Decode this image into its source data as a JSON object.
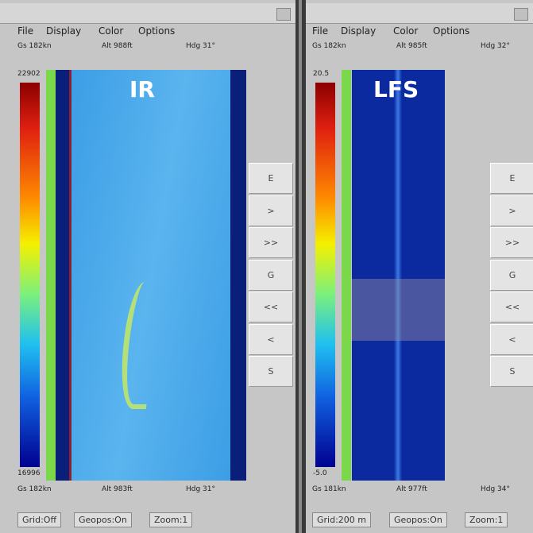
{
  "left_panel": {
    "menu": [
      "File",
      "Display",
      "Color",
      "Options"
    ],
    "status_top": [
      "Gs 182kn",
      "Alt 988ft",
      "Hdg 31°"
    ],
    "colorbar": {
      "max": "22902",
      "min": "16996"
    },
    "label": "IR",
    "status_bottom": [
      "Gs 182kn",
      "Alt 983ft",
      "Hdg 31°"
    ],
    "buttons": [
      "E",
      ">",
      ">>",
      "G",
      "<<",
      "<",
      "S"
    ],
    "footer": [
      "Grid:Off",
      "Geopos:On",
      "Zoom:1"
    ]
  },
  "right_panel": {
    "menu": [
      "File",
      "Display",
      "Color",
      "Options"
    ],
    "status_top": [
      "Gs 182kn",
      "Alt 985ft",
      "Hdg 32°"
    ],
    "colorbar": {
      "max": "20.5",
      "min": "-5.0"
    },
    "label": "LFS",
    "status_bottom": [
      "Gs 181kn",
      "Alt 977ft",
      "Hdg 34°"
    ],
    "buttons": [
      "E",
      ">",
      ">>",
      "G",
      "<<",
      "<",
      "S"
    ],
    "footer": [
      "Grid:200 m",
      "Geopos:On",
      "Zoom:1"
    ]
  }
}
